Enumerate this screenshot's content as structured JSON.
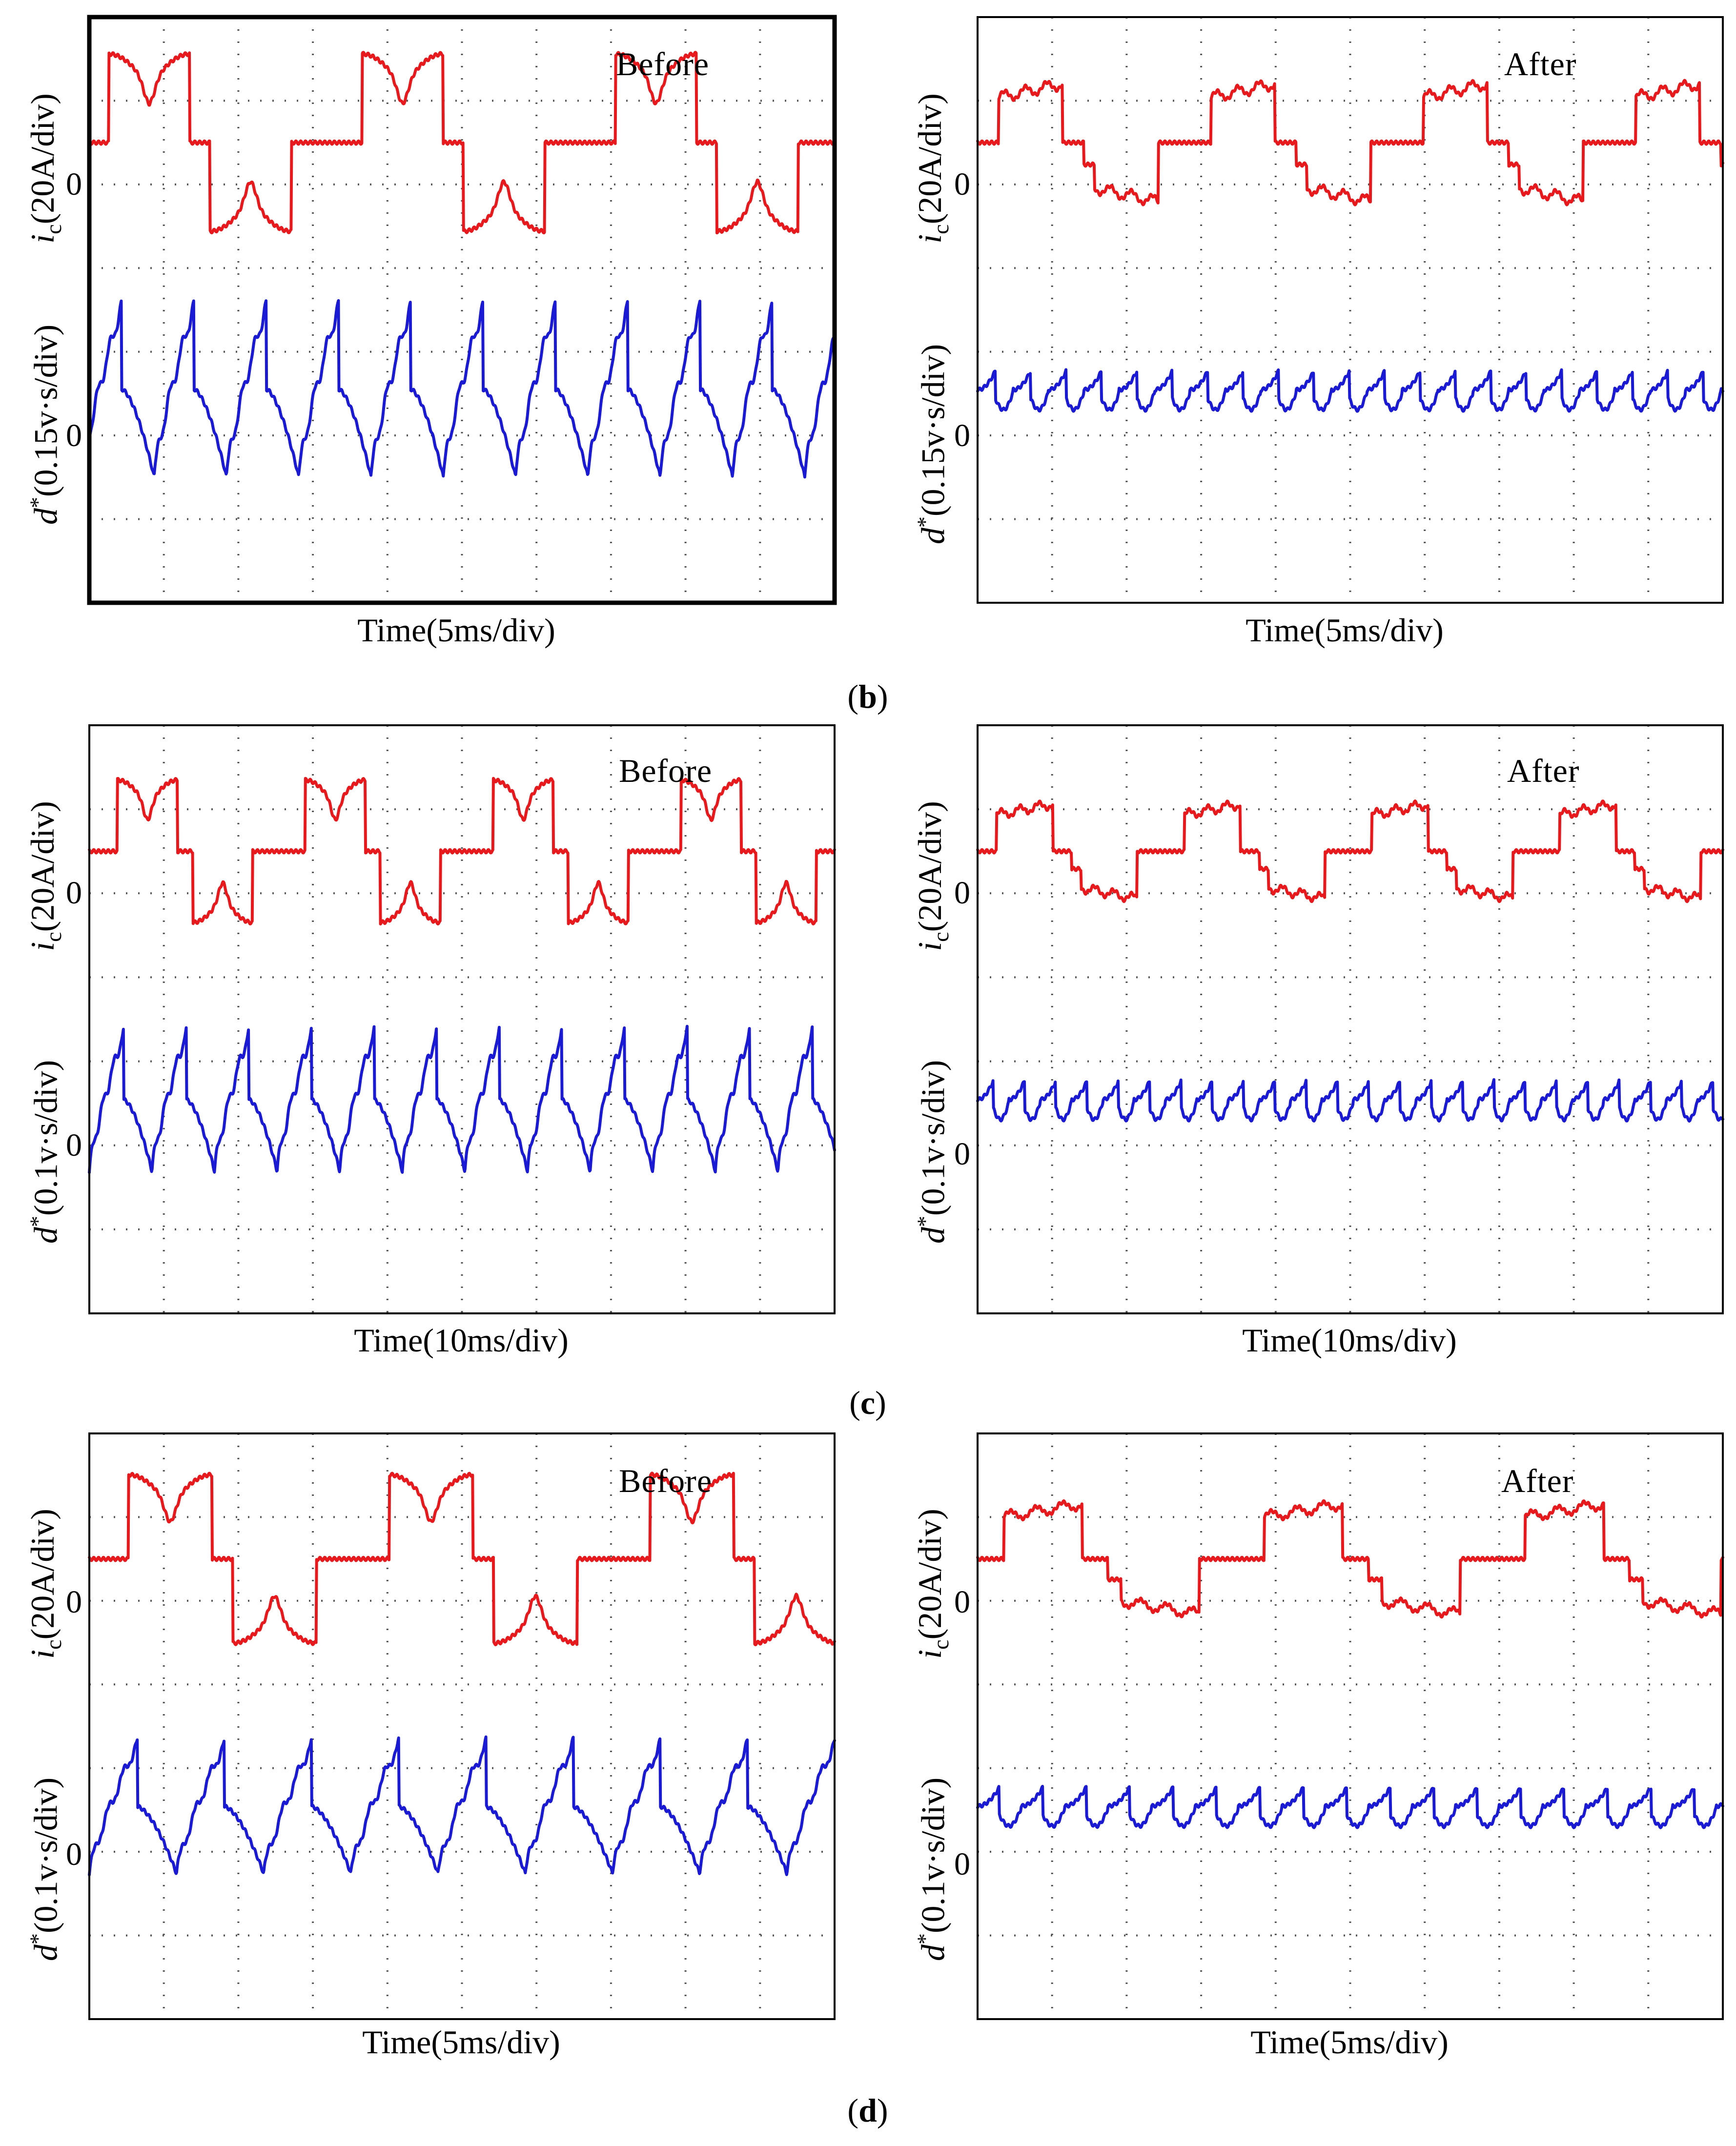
{
  "captions": [
    {
      "open": "(",
      "letter": "b",
      "close": ")"
    },
    {
      "open": "(",
      "letter": "c",
      "close": ")"
    },
    {
      "open": "(",
      "letter": "d",
      "close": ")"
    }
  ],
  "colors": {
    "current_trace": "#e8191d",
    "flux_trace": "#1a1ad4",
    "frame": "#000000",
    "grid": "#555555"
  },
  "chart_data": [
    {
      "id": "b-before",
      "type": "line",
      "title": "Before",
      "xlabel": "Time(5ms/div)",
      "ylabel_top": {
        "var": "i",
        "sub": "c",
        "units": "(20A/div)"
      },
      "ylabel_bottom": {
        "var": "d",
        "sup": "*",
        "units": "(0.15v·s/div)"
      },
      "zero_top": "0",
      "zero_bottom": "0",
      "grid_divisions": {
        "x": 10,
        "y": 7
      },
      "x_range_div": [
        0,
        10
      ],
      "y_range_div": [
        -3.5,
        3.5
      ],
      "series": [
        {
          "name": "i_c",
          "color": "#e8191d",
          "offset_div": 2,
          "style": "before",
          "period_div": 3.4,
          "phase_div": 0.25,
          "amplitude_div": 1.0
        },
        {
          "name": "d*",
          "color": "#1a1ad4",
          "offset_div": -1,
          "style": "sawtooth",
          "period_div": 0.97,
          "phase_div": 0.1,
          "amplitude_div": 1.05
        }
      ]
    },
    {
      "id": "b-after",
      "type": "line",
      "title": "After",
      "xlabel": "Time(5ms/div)",
      "ylabel_top": {
        "var": "i",
        "sub": "c",
        "units": "(20A/div)"
      },
      "ylabel_bottom": {
        "var": "d",
        "sup": "*",
        "units": "(0.15v·s/div)"
      },
      "zero_top": "0",
      "zero_bottom": "0",
      "grid_divisions": {
        "x": 10,
        "y": 7
      },
      "x_range_div": [
        0,
        10
      ],
      "y_range_div": [
        -3.5,
        3.5
      ],
      "series": [
        {
          "name": "i_c",
          "color": "#e8191d",
          "offset_div": 2,
          "style": "after",
          "period_div": 2.85,
          "phase_div": 0.0,
          "amplitude_div": 0.75
        },
        {
          "name": "d*",
          "color": "#1a1ad4",
          "offset_div": -1,
          "style": "ripple",
          "period_div": 0.475,
          "phase_div": 0.0,
          "amplitude_div": 0.3
        }
      ]
    },
    {
      "id": "c-before",
      "type": "line",
      "title": "Before",
      "xlabel": "Time(10ms/div)",
      "ylabel_top": {
        "var": "i",
        "sub": "c",
        "units": "(20A/div)"
      },
      "ylabel_bottom": {
        "var": "d",
        "sup": "*",
        "units": "(0.1v·s/div)"
      },
      "zero_top": "0",
      "zero_bottom": "0",
      "grid_divisions": {
        "x": 10,
        "y": 7
      },
      "x_range_div": [
        0,
        10
      ],
      "y_range_div": [
        -3.5,
        3.5
      ],
      "series": [
        {
          "name": "i_c",
          "color": "#e8191d",
          "offset_div": 2,
          "style": "before",
          "period_div": 2.52,
          "phase_div": 0.0,
          "amplitude_div": 0.8
        },
        {
          "name": "d*",
          "color": "#1a1ad4",
          "offset_div": -1,
          "style": "sawtooth",
          "period_div": 0.84,
          "phase_div": 0.0,
          "amplitude_div": 0.85
        }
      ]
    },
    {
      "id": "c-after",
      "type": "line",
      "title": "After",
      "xlabel": "Time(10ms/div)",
      "ylabel_top": {
        "var": "i",
        "sub": "c",
        "units": "(20A/div)"
      },
      "ylabel_bottom": {
        "var": "d",
        "sup": "*",
        "units": "(0.1v·s/div)"
      },
      "zero_top": "0",
      "zero_bottom": "0",
      "grid_divisions": {
        "x": 10,
        "y": 7
      },
      "x_range_div": [
        0,
        10
      ],
      "y_range_div": [
        -3.5,
        3.5
      ],
      "series": [
        {
          "name": "i_c",
          "color": "#e8191d",
          "offset_div": 2,
          "style": "after",
          "period_div": 2.52,
          "phase_div": 0.0,
          "amplitude_div": 0.6
        },
        {
          "name": "d*",
          "color": "#1a1ad4",
          "offset_div": -1,
          "style": "ripple",
          "period_div": 0.42,
          "phase_div": 0.0,
          "amplitude_div": 0.3
        }
      ]
    },
    {
      "id": "d-before",
      "type": "line",
      "title": "Before",
      "xlabel": "Time(5ms/div)",
      "ylabel_top": {
        "var": "i",
        "sub": "c",
        "units": "(20A/div)"
      },
      "ylabel_bottom": {
        "var": "d",
        "sup": "*",
        "units": "(0.1v·s/div)"
      },
      "zero_top": "0",
      "zero_bottom": "0",
      "grid_divisions": {
        "x": 10,
        "y": 7
      },
      "x_range_div": [
        0,
        10
      ],
      "y_range_div": [
        -3.5,
        3.5
      ],
      "series": [
        {
          "name": "i_c",
          "color": "#e8191d",
          "offset_div": 2,
          "style": "before",
          "period_div": 3.5,
          "phase_div": 0.0,
          "amplitude_div": 0.95
        },
        {
          "name": "d*",
          "color": "#1a1ad4",
          "offset_div": -1,
          "style": "sawtooth",
          "period_div": 1.17,
          "phase_div": 0.0,
          "amplitude_div": 0.8
        }
      ]
    },
    {
      "id": "d-after",
      "type": "line",
      "title": "After",
      "xlabel": "Time(5ms/div)",
      "ylabel_top": {
        "var": "i",
        "sub": "c",
        "units": "(20A/div)"
      },
      "ylabel_bottom": {
        "var": "d",
        "sup": "*",
        "units": "(0.1v·s/div)"
      },
      "zero_top": "0",
      "zero_bottom": "0",
      "grid_divisions": {
        "x": 10,
        "y": 7
      },
      "x_range_div": [
        0,
        10
      ],
      "y_range_div": [
        -3.5,
        3.5
      ],
      "series": [
        {
          "name": "i_c",
          "color": "#e8191d",
          "offset_div": 2,
          "style": "after",
          "period_div": 3.5,
          "phase_div": 0.0,
          "amplitude_div": 0.7
        },
        {
          "name": "d*",
          "color": "#1a1ad4",
          "offset_div": -1,
          "style": "ripple",
          "period_div": 0.583,
          "phase_div": 0.0,
          "amplitude_div": 0.3
        }
      ]
    }
  ]
}
